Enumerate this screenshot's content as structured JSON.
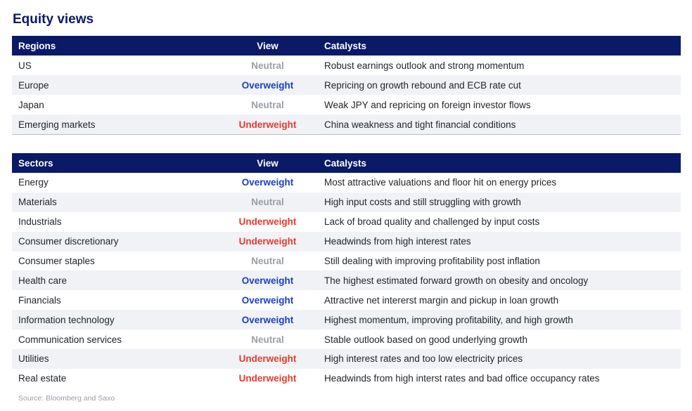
{
  "title": "Equity views",
  "colors": {
    "header_bg": "#0b1a66",
    "neutral": "#9a9ea6",
    "overweight": "#1c3fc4",
    "underweight": "#e23b2e"
  },
  "regions": {
    "headers": {
      "name": "Regions",
      "view": "View",
      "catalysts": "Catalysts"
    },
    "rows": [
      {
        "name": "US",
        "view": "Neutral",
        "catalysts": "Robust earnings outlook and strong momentum"
      },
      {
        "name": "Europe",
        "view": "Overweight",
        "catalysts": "Repricing on growth rebound and ECB rate cut"
      },
      {
        "name": "Japan",
        "view": "Neutral",
        "catalysts": "Weak JPY and repricing on foreign investor flows"
      },
      {
        "name": "Emerging markets",
        "view": "Underweight",
        "catalysts": "China weakness and tight financial conditions"
      }
    ]
  },
  "sectors": {
    "headers": {
      "name": "Sectors",
      "view": "View",
      "catalysts": "Catalysts"
    },
    "rows": [
      {
        "name": "Energy",
        "view": "Overweight",
        "catalysts": "Most attractive valuations and floor hit on energy prices"
      },
      {
        "name": "Materials",
        "view": "Neutral",
        "catalysts": "High input costs and still struggling with growth"
      },
      {
        "name": "Industrials",
        "view": "Underweight",
        "catalysts": "Lack of broad quality and challenged by input costs"
      },
      {
        "name": "Consumer discretionary",
        "view": "Underweight",
        "catalysts": "Headwinds from high interest rates"
      },
      {
        "name": "Consumer staples",
        "view": "Neutral",
        "catalysts": "Still dealing with improving profitability post inflation"
      },
      {
        "name": "Health care",
        "view": "Overweight",
        "catalysts": "The highest estimated forward growth on obesity and oncology"
      },
      {
        "name": "Financials",
        "view": "Overweight",
        "catalysts": "Attractive net intererst margin and pickup in loan growth"
      },
      {
        "name": "Information technology",
        "view": "Overweight",
        "catalysts": "Highest momentum, improving profitability, and high growth"
      },
      {
        "name": "Communication services",
        "view": "Neutral",
        "catalysts": "Stable outlook based on good underlying growth"
      },
      {
        "name": "Utilities",
        "view": "Underweight",
        "catalysts": "High interest rates and too low electricity prices"
      },
      {
        "name": "Real estate",
        "view": "Underweight",
        "catalysts": "Headwinds from high interst rates and bad office occupancy rates"
      }
    ]
  },
  "source": "Source: Bloomberg and Saxo"
}
